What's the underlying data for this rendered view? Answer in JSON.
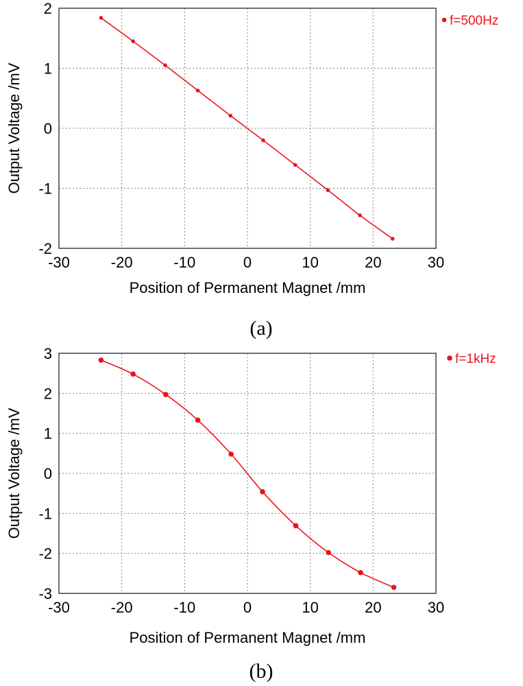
{
  "chart_data": [
    {
      "type": "line",
      "caption": "(a)",
      "xlabel": "Position of Permanent Magnet /mm",
      "ylabel": "Output Voltage /mV",
      "xlim": [
        -30,
        30
      ],
      "ylim": [
        -2,
        2
      ],
      "x_ticks": [
        "-30",
        "-20",
        "-10",
        "0",
        "10",
        "20",
        "30"
      ],
      "y_ticks": [
        "2",
        "1",
        "0",
        "-1",
        "-2"
      ],
      "grid": true,
      "legend_position": "right",
      "color": "#e8141b",
      "series": [
        {
          "name": "f=500Hz",
          "x": [
            -23.3,
            -18.2,
            -13.1,
            -7.9,
            -2.7,
            2.5,
            7.6,
            12.8,
            17.9,
            23.1
          ],
          "y": [
            1.84,
            1.45,
            1.05,
            0.63,
            0.21,
            -0.2,
            -0.61,
            -1.03,
            -1.45,
            -1.84
          ]
        }
      ]
    },
    {
      "type": "line",
      "caption": "(b)",
      "xlabel": "Position of Permanent Magnet /mm",
      "ylabel": "Output Voltage /mV",
      "xlim": [
        -30,
        30
      ],
      "ylim": [
        -3,
        3
      ],
      "x_ticks": [
        "-30",
        "-20",
        "-10",
        "0",
        "10",
        "20",
        "30"
      ],
      "y_ticks": [
        "3",
        "2",
        "1",
        "0",
        "-1",
        "-2",
        "-3"
      ],
      "grid": true,
      "legend_position": "right",
      "color": "#e8141b",
      "series": [
        {
          "name": "f=1kHz",
          "x": [
            -23.3,
            -18.2,
            -13.0,
            -7.9,
            -2.6,
            2.4,
            7.7,
            12.9,
            18.0,
            23.3
          ],
          "y": [
            2.83,
            2.48,
            1.97,
            1.33,
            0.48,
            -0.46,
            -1.31,
            -1.98,
            -2.48,
            -2.85
          ]
        }
      ]
    }
  ]
}
